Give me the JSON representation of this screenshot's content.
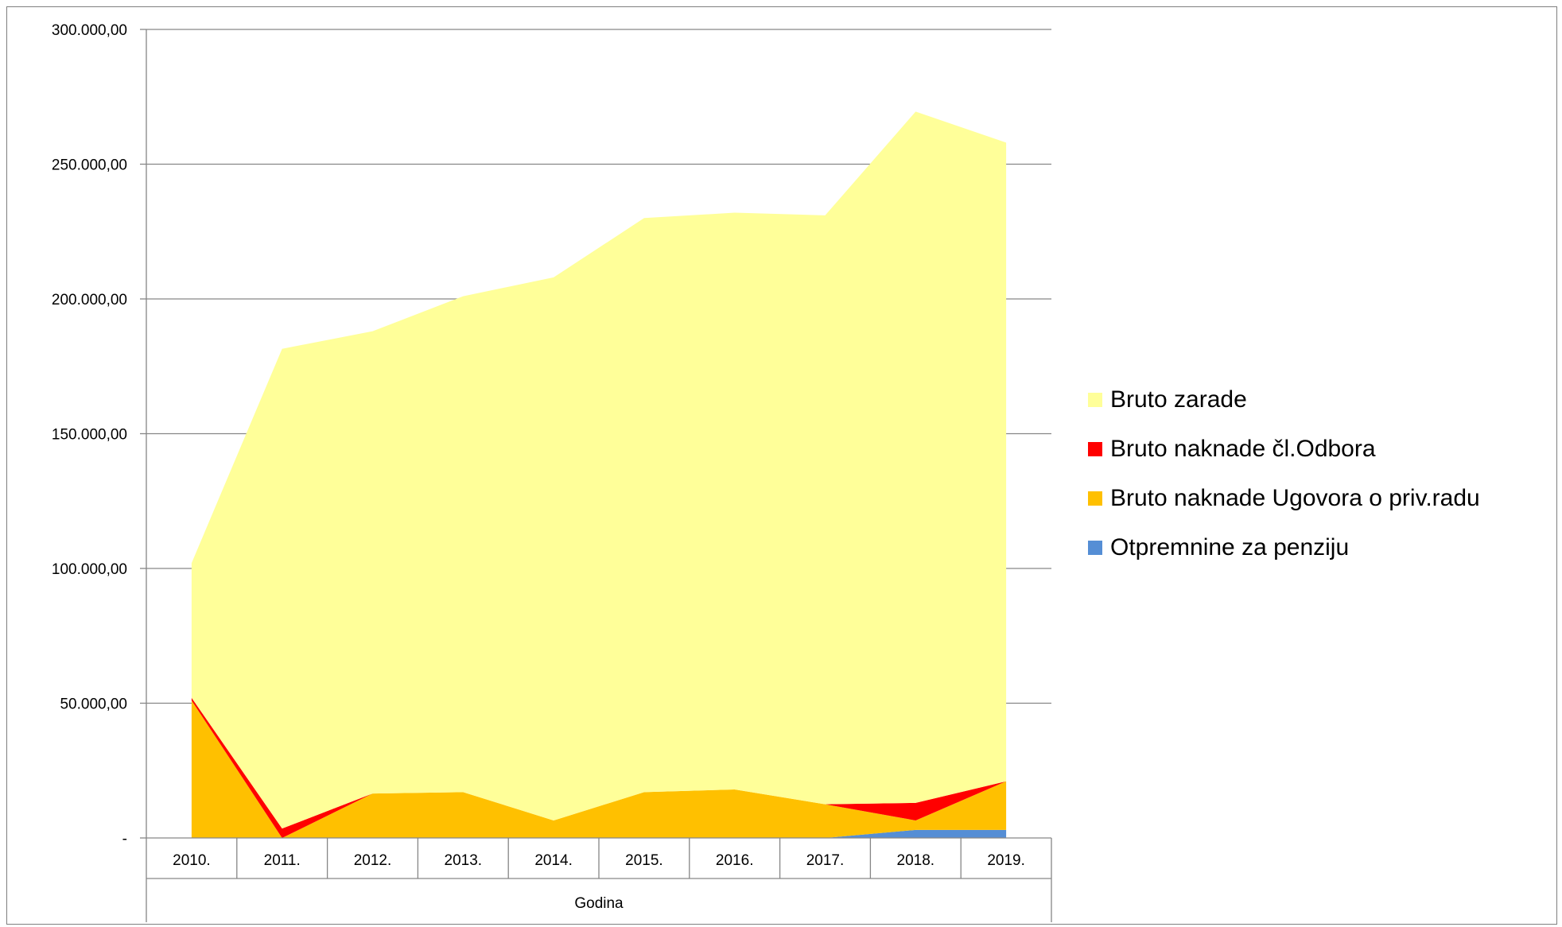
{
  "chart_data": {
    "type": "area",
    "stacked": true,
    "categories": [
      "2010.",
      "2011.",
      "2012.",
      "2013.",
      "2014.",
      "2015.",
      "2016.",
      "2017.",
      "2018.",
      "2019."
    ],
    "xlabel": "Godina",
    "ylabel": "",
    "ylim": [
      0,
      300000
    ],
    "yticks": [
      {
        "value": 0,
        "label": "-"
      },
      {
        "value": 50000,
        "label": "50.000,00"
      },
      {
        "value": 100000,
        "label": "100.000,00"
      },
      {
        "value": 150000,
        "label": "150.000,00"
      },
      {
        "value": 200000,
        "label": "200.000,00"
      },
      {
        "value": 250000,
        "label": "250.000,00"
      },
      {
        "value": 300000,
        "label": "300.000,00"
      }
    ],
    "grid": true,
    "legend_position": "right",
    "series": [
      {
        "name": "Otpremnine za penziju",
        "color": "#558ed5",
        "values": [
          0,
          0,
          0,
          0,
          0,
          0,
          0,
          0,
          3000,
          3000
        ]
      },
      {
        "name": "Bruto naknade Ugovora o priv.radu",
        "color": "#ffc000",
        "values": [
          51000,
          0,
          16500,
          17000,
          6500,
          17000,
          18000,
          12500,
          3500,
          18000
        ]
      },
      {
        "name": "Bruto naknade čl.Odbora",
        "color": "#ff0000",
        "values": [
          1000,
          3500,
          0,
          0,
          0,
          0,
          0,
          0,
          6500,
          0
        ]
      },
      {
        "name": "Bruto zarade",
        "color": "#ffff99",
        "values": [
          50000,
          178000,
          171500,
          184000,
          201500,
          213000,
          214000,
          218500,
          256500,
          237000
        ]
      }
    ],
    "legend_order": [
      "Bruto zarade",
      "Bruto naknade čl.Odbora",
      "Bruto naknade Ugovora o priv.radu",
      "Otpremnine za penziju"
    ]
  }
}
